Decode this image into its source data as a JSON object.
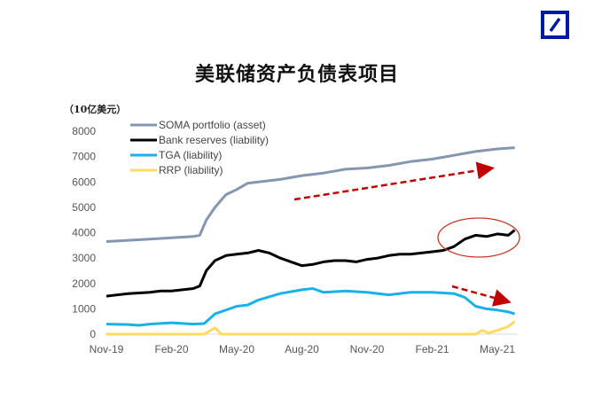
{
  "header": {
    "logo": "Deutsche Bank",
    "title": "美联储资产负债表项目"
  },
  "chart_data": {
    "type": "line",
    "title": "美联储资产负债表项目",
    "ylabel": "（10亿美元）",
    "xlabel": "",
    "ylim": [
      0,
      8000
    ],
    "yticks": [
      "0",
      "1000",
      "2000",
      "3000",
      "4000",
      "5000",
      "6000",
      "7000",
      "8000"
    ],
    "x_unit": "months since Nov-19",
    "xlim": [
      0,
      18.8
    ],
    "xticks": [
      {
        "x": 0,
        "label": "Nov-19"
      },
      {
        "x": 3,
        "label": "Feb-20"
      },
      {
        "x": 6,
        "label": "May-20"
      },
      {
        "x": 9,
        "label": "Aug-20"
      },
      {
        "x": 12,
        "label": "Nov-20"
      },
      {
        "x": 15,
        "label": "Feb-21"
      },
      {
        "x": 18,
        "label": "May-21"
      }
    ],
    "legend_position": "top-left",
    "series": [
      {
        "name": "SOMA portfolio (asset)",
        "color": "#8496b0",
        "x": [
          0,
          1,
          2,
          3,
          4,
          4.3,
          4.6,
          5,
          5.5,
          6,
          6.5,
          7,
          8,
          9,
          10,
          11,
          12,
          13,
          14,
          15,
          16,
          17,
          18,
          18.8
        ],
        "y": [
          3650,
          3700,
          3750,
          3800,
          3850,
          3900,
          4500,
          5000,
          5500,
          5700,
          5950,
          6000,
          6100,
          6250,
          6350,
          6500,
          6550,
          6650,
          6800,
          6900,
          7050,
          7200,
          7300,
          7350
        ]
      },
      {
        "name": "Bank reserves (liability)",
        "color": "#000000",
        "x": [
          0,
          1,
          2,
          2.5,
          3,
          4,
          4.3,
          4.6,
          5,
          5.5,
          6,
          6.5,
          7,
          7.5,
          8,
          8.5,
          9,
          9.5,
          10,
          10.5,
          11,
          11.5,
          12,
          12.5,
          13,
          13.5,
          14,
          14.5,
          15,
          15.5,
          16,
          16.5,
          17,
          17.5,
          18,
          18.5,
          18.8
        ],
        "y": [
          1500,
          1600,
          1650,
          1700,
          1700,
          1800,
          1900,
          2500,
          2900,
          3100,
          3150,
          3200,
          3300,
          3200,
          3000,
          2850,
          2700,
          2750,
          2850,
          2900,
          2900,
          2850,
          2950,
          3000,
          3100,
          3150,
          3150,
          3200,
          3250,
          3300,
          3450,
          3750,
          3900,
          3850,
          3950,
          3900,
          4100
        ]
      },
      {
        "name": "TGA (liability)",
        "color": "#1ab0ea",
        "x": [
          0,
          1,
          1.5,
          2,
          3,
          4,
          4.5,
          5,
          6,
          6.5,
          7,
          8,
          9,
          9.5,
          10,
          11,
          12,
          13,
          14,
          15,
          16,
          16.5,
          17,
          17.5,
          18,
          18.5,
          18.8
        ],
        "y": [
          400,
          380,
          350,
          400,
          450,
          400,
          420,
          800,
          1100,
          1150,
          1350,
          1600,
          1750,
          1800,
          1650,
          1700,
          1650,
          1550,
          1650,
          1650,
          1600,
          1450,
          1100,
          1000,
          950,
          880,
          800
        ]
      },
      {
        "name": "RRP (liability)",
        "color": "#ffd966",
        "x": [
          0,
          4.5,
          5,
          5.3,
          17,
          17.3,
          17.6,
          18,
          18.5,
          18.8
        ],
        "y": [
          0,
          0,
          250,
          0,
          0,
          150,
          50,
          150,
          300,
          500
        ]
      }
    ],
    "annotations": [
      "upward dashed arrow over SOMA",
      "ellipse around recent bank reserves",
      "downward dashed arrow over TGA"
    ]
  }
}
